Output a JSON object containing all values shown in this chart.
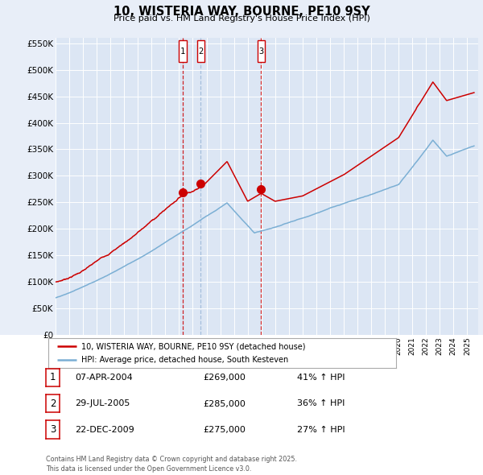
{
  "title": "10, WISTERIA WAY, BOURNE, PE10 9SY",
  "subtitle": "Price paid vs. HM Land Registry's House Price Index (HPI)",
  "background_color": "#e8eef8",
  "plot_bg_color": "#dce6f4",
  "lower_bg_color": "#ffffff",
  "ylim": [
    0,
    560000
  ],
  "yticks": [
    0,
    50000,
    100000,
    150000,
    200000,
    250000,
    300000,
    350000,
    400000,
    450000,
    500000,
    550000
  ],
  "ytick_labels": [
    "£0",
    "£50K",
    "£100K",
    "£150K",
    "£200K",
    "£250K",
    "£300K",
    "£350K",
    "£400K",
    "£450K",
    "£500K",
    "£550K"
  ],
  "sale_dates": [
    "07-APR-2004",
    "29-JUL-2005",
    "22-DEC-2009"
  ],
  "sale_prices": [
    269000,
    285000,
    275000
  ],
  "sale_labels": [
    "1",
    "2",
    "3"
  ],
  "sale_years": [
    2004.27,
    2005.58,
    2009.98
  ],
  "sale_hpi_pct": [
    "41% ↑ HPI",
    "36% ↑ HPI",
    "27% ↑ HPI"
  ],
  "red_color": "#cc0000",
  "blue_color": "#7bafd4",
  "legend_red": "10, WISTERIA WAY, BOURNE, PE10 9SY (detached house)",
  "legend_blue": "HPI: Average price, detached house, South Kesteven",
  "footnote": "Contains HM Land Registry data © Crown copyright and database right 2025.\nThis data is licensed under the Open Government Licence v3.0."
}
